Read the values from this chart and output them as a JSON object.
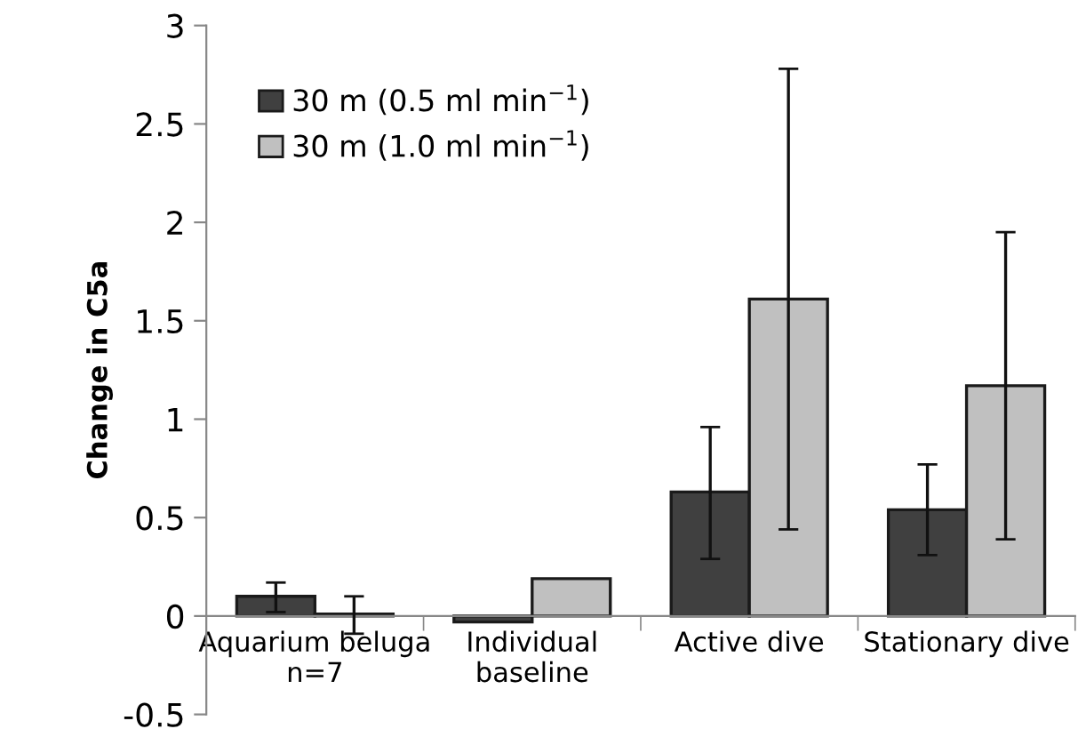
{
  "chart_data": {
    "type": "bar",
    "ylabel": "Change in C5a",
    "categories": [
      "Aquarium beluga\nn=7",
      "Individual\nbaseline",
      "Active dive",
      "Stationary dive"
    ],
    "series": [
      {
        "name": "30 m (0.5 ml min$^{−1}$)",
        "color": "#404040",
        "values": [
          0.1,
          -0.03,
          0.63,
          0.54
        ],
        "errors": [
          [
            0.02,
            0.17
          ],
          null,
          [
            0.29,
            0.96
          ],
          [
            0.31,
            0.77
          ]
        ]
      },
      {
        "name": "30 m (1.0 ml min$^{−1}$)",
        "color": "#c0c0c0",
        "values": [
          0.01,
          0.19,
          1.61,
          1.17
        ],
        "errors": [
          [
            -0.09,
            0.1
          ],
          null,
          [
            0.44,
            2.78
          ],
          [
            0.39,
            1.95
          ]
        ]
      }
    ],
    "ylim": [
      -0.5,
      3
    ],
    "yticks": [
      -0.5,
      0,
      0.5,
      1,
      1.5,
      2,
      2.5,
      3
    ],
    "grid": false,
    "legend": "top left"
  }
}
